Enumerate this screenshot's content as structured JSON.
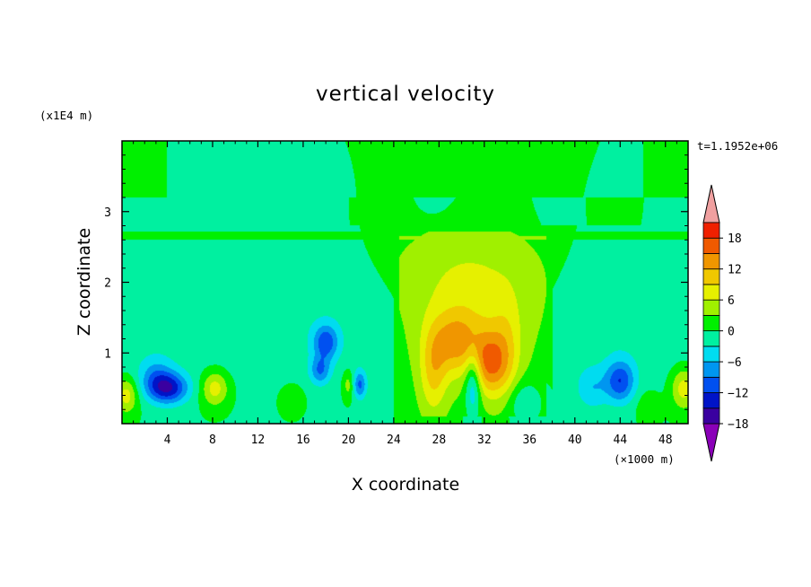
{
  "chart_data": {
    "type": "heatmap",
    "title": "vertical velocity",
    "xlabel": "X coordinate",
    "ylabel": "Z coordinate",
    "x_unit": "(×1000 m)",
    "y_unit": "(x1E4 m)",
    "time_label": "t=1.1952e+06",
    "xlim": [
      0,
      50
    ],
    "ylim": [
      0,
      4
    ],
    "x_ticks": [
      "4",
      "8",
      "12",
      "16",
      "20",
      "24",
      "28",
      "32",
      "36",
      "40",
      "44",
      "48"
    ],
    "y_ticks": [
      "1",
      "2",
      "3"
    ],
    "colorbar": {
      "levels": [
        -21,
        -18,
        -15,
        -12,
        -9,
        -6,
        -3,
        0,
        3,
        6,
        9,
        12,
        15,
        18,
        21
      ],
      "tick_labels": [
        "18",
        "12",
        "6",
        "0",
        "−6",
        "−12",
        "−18"
      ],
      "tick_values": [
        18,
        12,
        6,
        0,
        -6,
        -12,
        -18
      ],
      "colors": [
        "#8a00b8",
        "#3a00a0",
        "#0014c8",
        "#0050f0",
        "#0096f0",
        "#00dcf0",
        "#00f0a0",
        "#00f000",
        "#a0f000",
        "#e6f000",
        "#f0c800",
        "#f09600",
        "#f05a00",
        "#f02000",
        "#f0a0a0"
      ]
    },
    "features": [
      {
        "kind": "updraft",
        "x": 30,
        "z": 1.1,
        "value": 14
      },
      {
        "kind": "updraft",
        "x": 32.5,
        "z": 0.8,
        "value": 15
      },
      {
        "kind": "updraft",
        "x": 27.5,
        "z": 1.0,
        "value": 12
      },
      {
        "kind": "plume",
        "x": 31,
        "z": 1.8,
        "value": 5
      },
      {
        "kind": "downdraft",
        "x": 4,
        "z": 0.5,
        "value": -15
      },
      {
        "kind": "downdraft",
        "x": 18,
        "z": 1.1,
        "value": -11
      },
      {
        "kind": "downdraft",
        "x": 44,
        "z": 0.6,
        "value": -12
      },
      {
        "kind": "updraft",
        "x": 0.5,
        "z": 0.4,
        "value": 6
      },
      {
        "kind": "updraft",
        "x": 8,
        "z": 0.5,
        "value": 6
      },
      {
        "kind": "updraft",
        "x": 49.5,
        "z": 0.5,
        "value": 6
      }
    ]
  }
}
